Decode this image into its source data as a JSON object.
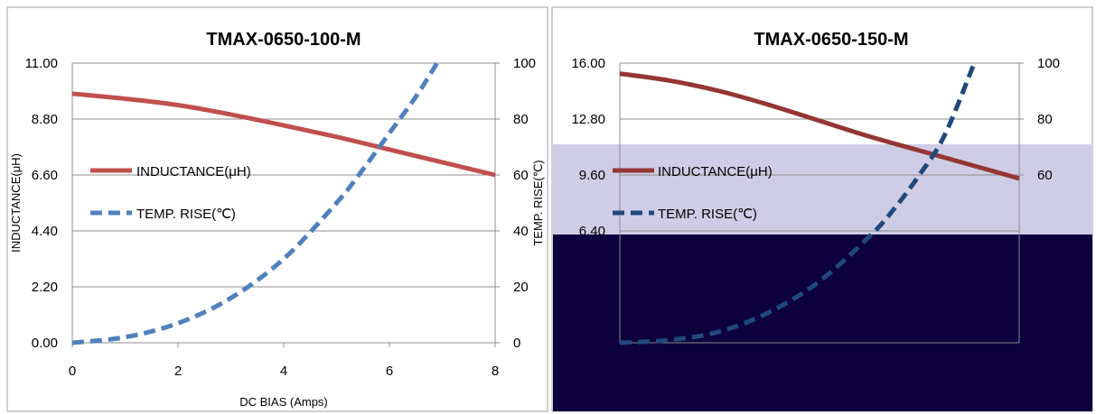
{
  "chart_data": [
    {
      "type": "line",
      "title": "TMAX-0650-100-M",
      "xlabel": "DC BIAS  (Amps)",
      "ylabel": "INDUCTANCE(μH)",
      "y2label": "TEMP. RISE(℃)",
      "xlim": [
        0,
        8
      ],
      "ylim": [
        0,
        11
      ],
      "y2lim": [
        0,
        100
      ],
      "x_ticks": [
        "0",
        "2",
        "4",
        "6",
        "8"
      ],
      "y_ticks": [
        "0.00",
        "2.20",
        "4.40",
        "6.60",
        "8.80",
        "11.00"
      ],
      "y2_ticks": [
        "0",
        "20",
        "40",
        "60",
        "80",
        "100"
      ],
      "grid": true,
      "legend_position": "left",
      "series": [
        {
          "name": "INDUCTANCE(μH)",
          "axis": "left",
          "color": "#c0504d",
          "style": "solid",
          "x": [
            0,
            1,
            2,
            3,
            4,
            5,
            6,
            7,
            8
          ],
          "y": [
            9.8,
            9.6,
            9.35,
            8.98,
            8.55,
            8.1,
            7.6,
            7.1,
            6.6
          ]
        },
        {
          "name": "TEMP. RISE(℃)",
          "axis": "right",
          "color": "#4f81bd",
          "style": "dashed",
          "x": [
            0,
            1,
            2,
            3,
            4,
            5,
            5.5,
            6,
            6.5,
            6.9
          ],
          "y": [
            0,
            2,
            7,
            16,
            30,
            50,
            62,
            75,
            88,
            100
          ]
        }
      ]
    },
    {
      "type": "line",
      "title": "TMAX-0650-150-M",
      "xlabel": "",
      "ylabel": "",
      "y2label": "",
      "xlim": [
        0,
        8
      ],
      "ylim": [
        0,
        16
      ],
      "y2lim": [
        0,
        100
      ],
      "y_ticks": [
        "16.00",
        "12.80",
        "9.60",
        "6.40"
      ],
      "y2_ticks": [
        "100",
        "80",
        "60"
      ],
      "grid": true,
      "legend_position": "left",
      "series": [
        {
          "name": "INDUCTANCE(μH)",
          "axis": "left",
          "color": "#943634",
          "style": "solid",
          "x": [
            0,
            1,
            2,
            3,
            4,
            5,
            6,
            7,
            8
          ],
          "y": [
            15.4,
            15.0,
            14.4,
            13.6,
            12.7,
            11.8,
            11.0,
            10.2,
            9.4
          ]
        },
        {
          "name": "TEMP. RISE(℃)",
          "axis": "right",
          "color": "#1f497d",
          "style": "dashed",
          "x": [
            0,
            1,
            2,
            3,
            4,
            5,
            5.5,
            6,
            6.5,
            7.1
          ],
          "y": [
            0,
            1,
            4,
            11,
            22,
            38,
            48,
            60,
            74,
            100
          ]
        }
      ]
    }
  ]
}
